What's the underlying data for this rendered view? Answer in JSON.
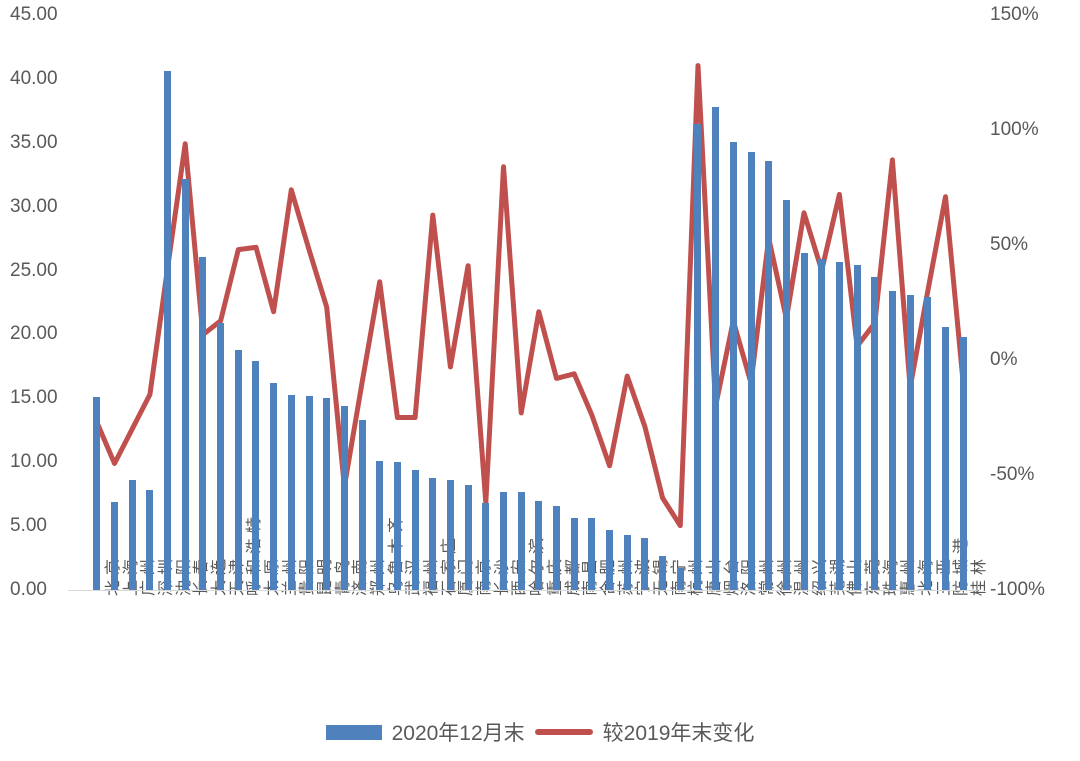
{
  "legend": {
    "bar_label": "2020年12月末",
    "line_label": "较2019年末变化"
  },
  "colors": {
    "bar": "#4F81BD",
    "line": "#C0504D",
    "axis_text": "#595959",
    "baseline": "#d9d9d9"
  },
  "chart_data": {
    "type": "combo",
    "subtype": "bar+line dual axis",
    "grid": false,
    "legend_position": "bottom",
    "left_axis": {
      "min": 0,
      "max": 45,
      "step": 5,
      "tick_labels": [
        "45.00",
        "40.00",
        "35.00",
        "30.00",
        "25.00",
        "20.00",
        "15.00",
        "10.00",
        "5.00",
        "0.00"
      ]
    },
    "right_axis": {
      "min": -100,
      "max": 150,
      "step": 50,
      "tick_labels": [
        "150%",
        "100%",
        "50%",
        "0%",
        "-50%",
        "-100%"
      ]
    },
    "categories": [
      "北京",
      "上海",
      "广州",
      "深圳",
      "沈阳",
      "长春",
      "大连",
      "天津",
      "呼和浩特",
      "太原",
      "兰州",
      "贵阳",
      "昆明",
      "青岛",
      "济南",
      "郑州",
      "乌鲁木齐",
      "武汉",
      "福州",
      "石家庄",
      "厦门",
      "南京",
      "长沙",
      "西安",
      "哈尔滨",
      "重庆",
      "成都",
      "南昌",
      "合肥",
      "苏州",
      "宁波",
      "无锡",
      "南宁",
      "杭州",
      "唐山",
      "烟台",
      "洛阳",
      "常州",
      "徐州",
      "温州",
      "绍兴",
      "芜湖",
      "佛山",
      "东莞",
      "珠海",
      "惠州",
      "北海",
      "三亚",
      "防城港",
      "桂林"
    ],
    "series": [
      {
        "name": "2020年12月末",
        "type": "bar",
        "axis": "left",
        "color": "#4F81BD",
        "values": [
          15.1,
          6.9,
          8.6,
          7.8,
          40.6,
          32.2,
          26.1,
          20.9,
          18.8,
          17.9,
          16.2,
          15.3,
          15.2,
          15.0,
          14.4,
          13.3,
          10.1,
          10.0,
          9.4,
          8.8,
          8.6,
          8.2,
          6.8,
          7.7,
          7.7,
          7.0,
          6.6,
          5.6,
          5.6,
          4.7,
          4.3,
          4.1,
          2.7,
          1.7,
          36.5,
          37.8,
          35.1,
          34.3,
          33.6,
          30.5,
          26.4,
          25.9,
          25.7,
          25.4,
          24.5,
          23.4,
          23.1,
          22.9,
          20.6,
          19.8
        ]
      },
      {
        "name": "较2019年末变化",
        "type": "line",
        "axis": "right",
        "color": "#C0504D",
        "values_percent": [
          -27,
          -45,
          -30,
          -15,
          40,
          94,
          11,
          17,
          48,
          49,
          21,
          74,
          48,
          23,
          -55,
          -10,
          34,
          -25,
          -25,
          63,
          -3,
          41,
          -62,
          84,
          -23,
          21,
          -8,
          -6,
          -24,
          -46,
          -7,
          -29,
          -60,
          -72,
          128,
          -20,
          17,
          -10,
          53,
          18,
          64,
          39,
          72,
          6,
          16,
          87,
          -12,
          30,
          71,
          -10
        ]
      }
    ]
  }
}
